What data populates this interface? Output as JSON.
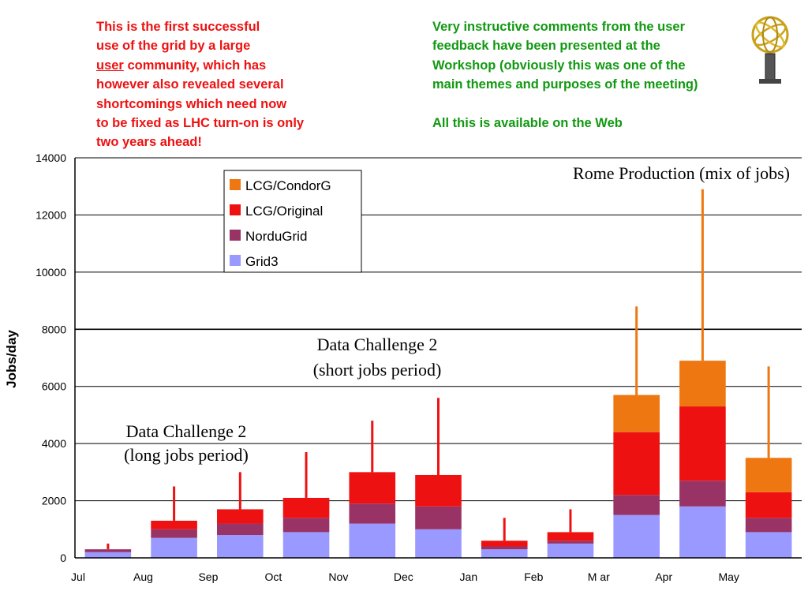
{
  "left_note": {
    "line1": "This is the first successful",
    "line2": "use of the grid by a large",
    "line3_underlined": "user",
    "line3_rest": " community, which has",
    "line4": "however also revealed several",
    "line5": "shortcomings which need now",
    "line6": "to be fixed as LHC turn-on is only",
    "line7": "two years ahead!",
    "color": "#ee1111"
  },
  "right_note": {
    "line1": "Very instructive comments from the user",
    "line2": "feedback have been presented at the",
    "line3": "Workshop (obviously this was one of the",
    "line4": "main themes and purposes of the meeting)",
    "line5": "All this is available on the Web",
    "color": "#119911"
  },
  "logo": {
    "icon": "atlas-experiment-logo-icon"
  },
  "chart_data": {
    "type": "bar",
    "stacked": true,
    "ylabel": "Jobs/day",
    "xlabel": "",
    "ylim": [
      0,
      14000
    ],
    "yticks": [
      0,
      2000,
      4000,
      6000,
      8000,
      10000,
      12000,
      14000
    ],
    "xticks": [
      "Jul",
      "Aug",
      "Sep",
      "Oct",
      "Nov",
      "Dec",
      "Jan",
      "Feb",
      "M ar",
      "Apr",
      "May"
    ],
    "grid": "horizontal",
    "legend_position": "top-left",
    "categories": [
      "Jul",
      "Aug",
      "Sep",
      "Oct",
      "Nov",
      "Dec",
      "Jan",
      "Feb",
      "Mar",
      "Apr",
      "May"
    ],
    "series": [
      {
        "name": "Grid3",
        "color": "#9999ff",
        "values": [
          200,
          700,
          800,
          900,
          1200,
          1000,
          300,
          500,
          1500,
          1800,
          900
        ]
      },
      {
        "name": "NorduGrid",
        "color": "#993366",
        "values": [
          100,
          300,
          400,
          500,
          700,
          800,
          100,
          100,
          700,
          900,
          500
        ]
      },
      {
        "name": "LCG/Original",
        "color": "#ee1111",
        "values": [
          0,
          300,
          500,
          700,
          1100,
          1100,
          200,
          300,
          2200,
          2600,
          900
        ]
      },
      {
        "name": "LCG/CondorG",
        "color": "#ee7711",
        "values": [
          0,
          0,
          0,
          0,
          0,
          0,
          0,
          0,
          1300,
          1600,
          1200
        ]
      }
    ],
    "peak_series_max": [
      500,
      2500,
      3000,
      3700,
      4800,
      5600,
      1400,
      1700,
      8800,
      12900,
      6700
    ],
    "annotations": {
      "long_jobs_line1": "Data Challenge 2",
      "long_jobs_line2": "(long jobs period)",
      "short_jobs_line1": "Data Challenge 2",
      "short_jobs_line2": "(short jobs period)",
      "rome": "Rome Production (mix of jobs)"
    }
  }
}
